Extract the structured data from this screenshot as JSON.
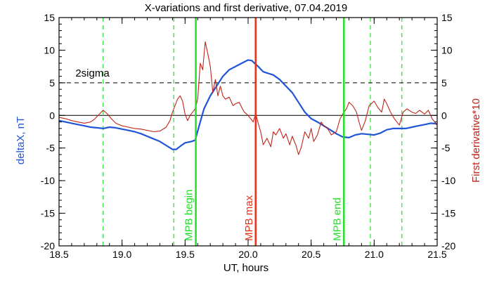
{
  "chart_data": {
    "type": "line",
    "title": "X-variations and first derivative, 07.04.2019",
    "xlabel": "UT, hours",
    "ylabel_left": "deltaX, nT",
    "ylabel_right": "First derivative*10",
    "xlim": [
      18.5,
      21.5
    ],
    "ylim": [
      -20,
      15
    ],
    "xticks": [
      18.5,
      19.0,
      19.5,
      20.0,
      20.5,
      21.0,
      21.5
    ],
    "xtick_labels": [
      "18.5",
      "19.0",
      "19.5",
      "20.0",
      "20.5",
      "21.0",
      "21.5"
    ],
    "yticks": [
      15,
      10,
      5,
      0,
      -5,
      -10,
      -15,
      -20
    ],
    "ytick_labels": [
      "15",
      "10",
      "5",
      "0",
      "-5",
      "-10",
      "-15",
      "-20"
    ],
    "colors": {
      "deltaX": "#1f55d6",
      "derivative": "#c0241a",
      "mpb": "#22e02a",
      "mpb_max": "#e8311a",
      "guides": "#22e02a",
      "axes": "#000000"
    },
    "threshold": {
      "value": 5,
      "label": "2sigma",
      "style": "dashed"
    },
    "zero_line": 0,
    "vertical_markers": [
      {
        "x": 19.585,
        "label": "MPB begin",
        "color": "#22e02a"
      },
      {
        "x": 20.06,
        "label": "MPB max",
        "color": "#e8311a"
      },
      {
        "x": 20.76,
        "label": "MPB end",
        "color": "#22e02a"
      }
    ],
    "dashed_guides": [
      18.85,
      19.41,
      20.97,
      21.22
    ],
    "series": [
      {
        "name": "deltaX, nT",
        "axis": "left",
        "color": "#1f55d6",
        "x": [
          18.5,
          18.55,
          18.6,
          18.65,
          18.7,
          18.75,
          18.8,
          18.85,
          18.9,
          18.95,
          19.0,
          19.05,
          19.1,
          19.15,
          19.2,
          19.25,
          19.3,
          19.35,
          19.4,
          19.43,
          19.47,
          19.5,
          19.55,
          19.58,
          19.62,
          19.65,
          19.7,
          19.75,
          19.8,
          19.85,
          19.9,
          19.95,
          20.0,
          20.03,
          20.05,
          20.08,
          20.12,
          20.15,
          20.2,
          20.25,
          20.3,
          20.35,
          20.4,
          20.45,
          20.5,
          20.55,
          20.6,
          20.65,
          20.7,
          20.75,
          20.8,
          20.85,
          20.9,
          20.95,
          21.0,
          21.05,
          21.1,
          21.15,
          21.2,
          21.25,
          21.3,
          21.35,
          21.4,
          21.45,
          21.5
        ],
        "y": [
          -0.8,
          -1.0,
          -1.2,
          -1.4,
          -1.6,
          -1.8,
          -1.9,
          -2.0,
          -1.8,
          -1.9,
          -2.1,
          -2.3,
          -2.5,
          -2.8,
          -3.2,
          -3.6,
          -4.0,
          -4.6,
          -5.2,
          -5.2,
          -4.6,
          -4.2,
          -4.0,
          -3.8,
          -1.0,
          1.0,
          3.0,
          4.5,
          6.0,
          7.0,
          7.5,
          8.0,
          8.5,
          8.4,
          8.0,
          7.5,
          6.7,
          6.5,
          6.2,
          5.5,
          4.5,
          3.5,
          2.0,
          0.5,
          -0.5,
          -1.0,
          -1.6,
          -2.2,
          -2.8,
          -3.3,
          -3.4,
          -3.0,
          -2.8,
          -2.9,
          -3.0,
          -2.7,
          -2.2,
          -2.0,
          -2.0,
          -2.0,
          -1.8,
          -1.6,
          -1.4,
          -1.2,
          -1.3
        ]
      },
      {
        "name": "First derivative*10",
        "axis": "right",
        "color": "#c0241a",
        "x": [
          18.5,
          18.55,
          18.6,
          18.65,
          18.7,
          18.75,
          18.78,
          18.82,
          18.85,
          18.88,
          18.92,
          18.95,
          19.0,
          19.05,
          19.1,
          19.15,
          19.2,
          19.25,
          19.3,
          19.35,
          19.38,
          19.4,
          19.42,
          19.44,
          19.46,
          19.48,
          19.5,
          19.52,
          19.54,
          19.56,
          19.58,
          19.6,
          19.62,
          19.64,
          19.66,
          19.68,
          19.7,
          19.72,
          19.74,
          19.76,
          19.78,
          19.8,
          19.82,
          19.85,
          19.88,
          19.9,
          19.93,
          19.95,
          19.97,
          20.0,
          20.02,
          20.04,
          20.06,
          20.08,
          20.1,
          20.12,
          20.15,
          20.18,
          20.2,
          20.22,
          20.25,
          20.28,
          20.3,
          20.33,
          20.35,
          20.38,
          20.4,
          20.42,
          20.45,
          20.48,
          20.5,
          20.52,
          20.55,
          20.58,
          20.6,
          20.63,
          20.66,
          20.7,
          20.73,
          20.76,
          20.78,
          20.8,
          20.83,
          20.86,
          20.88,
          20.9,
          20.93,
          20.96,
          21.0,
          21.03,
          21.06,
          21.08,
          21.1,
          21.13,
          21.16,
          21.2,
          21.23,
          21.26,
          21.3,
          21.33,
          21.36,
          21.4,
          21.43,
          21.46,
          21.5
        ],
        "y": [
          -0.3,
          -0.5,
          -0.8,
          -1.0,
          -1.2,
          -1.0,
          -0.6,
          0.2,
          0.8,
          0.3,
          -0.6,
          -1.2,
          -1.6,
          -1.8,
          -2.0,
          -2.1,
          -2.3,
          -2.5,
          -2.4,
          -1.8,
          -0.8,
          0.5,
          1.5,
          2.5,
          3.0,
          2.2,
          0.2,
          -0.8,
          0.0,
          0.5,
          1.0,
          2.5,
          8.0,
          7.0,
          11.3,
          9.5,
          7.5,
          3.5,
          5.5,
          3.0,
          4.5,
          3.0,
          2.5,
          2.8,
          1.5,
          1.8,
          2.0,
          1.2,
          0.5,
          0.0,
          -0.5,
          -1.0,
          0.3,
          -1.2,
          -2.5,
          -4.5,
          -3.5,
          -4.8,
          -2.5,
          -3.0,
          -2.0,
          -3.5,
          -2.8,
          -4.5,
          -3.2,
          -4.6,
          -6.0,
          -5.0,
          -2.5,
          -3.5,
          -2.0,
          -4.0,
          -3.0,
          -1.0,
          -1.6,
          -2.0,
          -3.0,
          -2.5,
          -0.5,
          0.5,
          1.0,
          2.0,
          1.5,
          0.5,
          -1.0,
          -2.3,
          -0.8,
          1.5,
          2.2,
          1.2,
          0.5,
          2.5,
          1.8,
          0.5,
          -0.5,
          -1.5,
          0.5,
          1.0,
          0.5,
          0.3,
          0.8,
          0.2,
          0.8,
          -0.5,
          -1.5
        ]
      }
    ]
  }
}
